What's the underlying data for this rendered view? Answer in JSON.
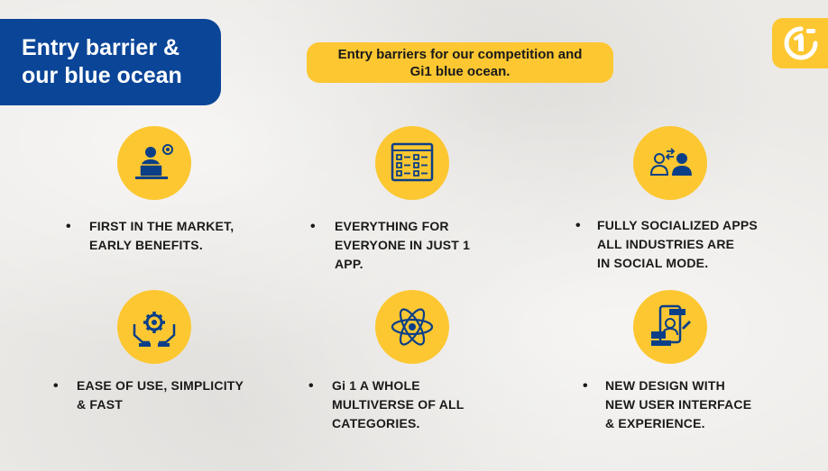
{
  "header": {
    "title": "Entry barrier &\nour blue ocean",
    "subtitle": "Entry barriers for our competition and\nGi1 blue ocean."
  },
  "logo": {
    "icon": "gi1-logo-icon"
  },
  "colors": {
    "accent": "#fcc731",
    "brand_blue": "#0a4597",
    "icon_blue": "#0a3f88"
  },
  "features": [
    {
      "icon": "laptop-user-icon",
      "bullet": "•",
      "text": "FIRST IN THE MARKET,\nEARLY BENEFITS."
    },
    {
      "icon": "checklist-icon",
      "bullet": "•",
      "text": "EVERYTHING FOR\nEVERYONE IN JUST 1\nAPP."
    },
    {
      "icon": "users-exchange-icon",
      "bullet": "•",
      "text": "FULLY SOCIALIZED APPS\nALL INDUSTRIES ARE\nIN SOCIAL MODE."
    },
    {
      "icon": "hands-gear-icon",
      "bullet": "•",
      "text": "EASE OF USE, SIMPLICITY\n& FAST"
    },
    {
      "icon": "atom-icon",
      "bullet": "•",
      "text": "Gi 1 A WHOLE\nMULTIVERSE OF ALL\nCATEGORIES."
    },
    {
      "icon": "mobile-design-icon",
      "bullet": "•",
      "text": "NEW DESIGN WITH\nNEW USER INTERFACE\n& EXPERIENCE."
    }
  ]
}
